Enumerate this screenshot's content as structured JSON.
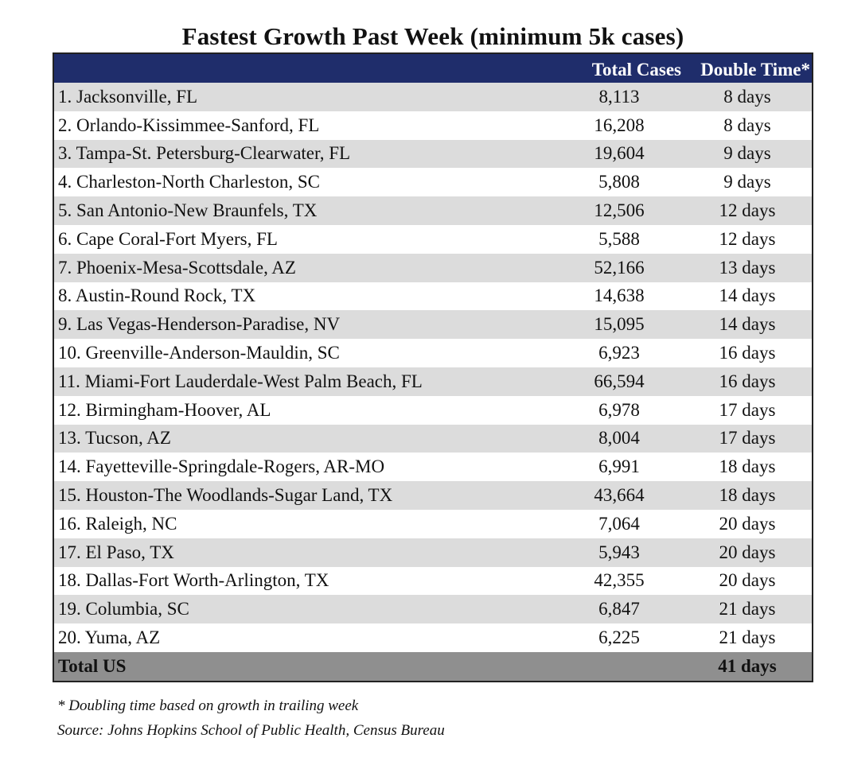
{
  "chart_data": {
    "type": "table",
    "title": "Fastest Growth Past Week (minimum 5k cases)",
    "columns": [
      "",
      "Total Cases",
      "Double Time*"
    ],
    "rows": [
      {
        "name": "1. Jacksonville, FL",
        "total_cases": "8,113",
        "double_time": "8 days"
      },
      {
        "name": "2. Orlando-Kissimmee-Sanford, FL",
        "total_cases": "16,208",
        "double_time": "8 days"
      },
      {
        "name": "3. Tampa-St. Petersburg-Clearwater, FL",
        "total_cases": "19,604",
        "double_time": "9 days"
      },
      {
        "name": "4. Charleston-North Charleston, SC",
        "total_cases": "5,808",
        "double_time": "9 days"
      },
      {
        "name": "5. San Antonio-New Braunfels, TX",
        "total_cases": "12,506",
        "double_time": "12 days"
      },
      {
        "name": "6. Cape Coral-Fort Myers, FL",
        "total_cases": "5,588",
        "double_time": "12 days"
      },
      {
        "name": "7. Phoenix-Mesa-Scottsdale, AZ",
        "total_cases": "52,166",
        "double_time": "13 days"
      },
      {
        "name": "8. Austin-Round Rock, TX",
        "total_cases": "14,638",
        "double_time": "14 days"
      },
      {
        "name": "9. Las Vegas-Henderson-Paradise, NV",
        "total_cases": "15,095",
        "double_time": "14 days"
      },
      {
        "name": "10. Greenville-Anderson-Mauldin, SC",
        "total_cases": "6,923",
        "double_time": "16 days"
      },
      {
        "name": "11. Miami-Fort Lauderdale-West Palm Beach, FL",
        "total_cases": "66,594",
        "double_time": "16 days"
      },
      {
        "name": "12. Birmingham-Hoover, AL",
        "total_cases": "6,978",
        "double_time": "17 days"
      },
      {
        "name": "13. Tucson, AZ",
        "total_cases": "8,004",
        "double_time": "17 days"
      },
      {
        "name": "14. Fayetteville-Springdale-Rogers, AR-MO",
        "total_cases": "6,991",
        "double_time": "18 days"
      },
      {
        "name": "15. Houston-The Woodlands-Sugar Land, TX",
        "total_cases": "43,664",
        "double_time": "18 days"
      },
      {
        "name": "16. Raleigh, NC",
        "total_cases": "7,064",
        "double_time": "20 days"
      },
      {
        "name": "17. El Paso, TX",
        "total_cases": "5,943",
        "double_time": "20 days"
      },
      {
        "name": "18. Dallas-Fort Worth-Arlington, TX",
        "total_cases": "42,355",
        "double_time": "20 days"
      },
      {
        "name": "19. Columbia, SC",
        "total_cases": "6,847",
        "double_time": "21 days"
      },
      {
        "name": "20. Yuma, AZ",
        "total_cases": "6,225",
        "double_time": "21 days"
      }
    ],
    "total": {
      "name": "Total US",
      "total_cases": "",
      "double_time": "41 days"
    }
  },
  "footnote": "* Doubling time based on growth in trailing week",
  "source": "Source: Johns Hopkins School of Public Health, Census Bureau",
  "colors": {
    "header_bg": "#1f2d6b",
    "header_text": "#ffffff",
    "row_shaded": "#dcdcdc",
    "row_plain": "#ffffff",
    "total_bg": "#8f8f8f"
  }
}
